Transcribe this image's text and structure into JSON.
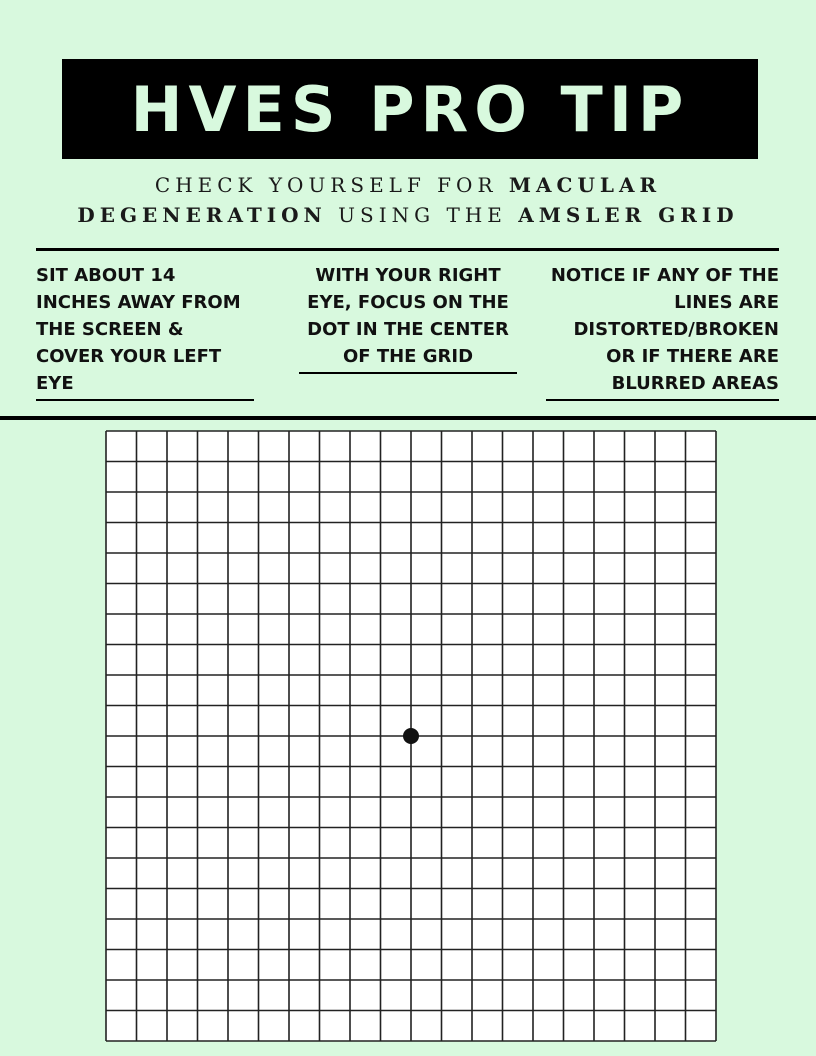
{
  "title": "HVES PRO TIP",
  "subtitle": {
    "line1_regular": "CHECK YOURSELF FOR ",
    "line1_bold": "MACULAR",
    "line2_bold1": "DEGENERATION",
    "line2_regular": " USING THE ",
    "line2_bold2": "AMSLER GRID"
  },
  "steps": [
    {
      "text": "SIT ABOUT 14 INCHES AWAY FROM THE SCREEN & COVER YOUR LEFT EYE"
    },
    {
      "text": "WITH YOUR RIGHT EYE, FOCUS ON THE DOT IN THE CENTER OF THE GRID"
    },
    {
      "text": "NOTICE IF ANY OF THE LINES ARE DISTORTED/BROKEN OR IF THERE ARE BLURRED AREAS"
    }
  ],
  "amsler_grid": {
    "rows": 20,
    "columns": 20,
    "center_dot": true
  },
  "colors": {
    "background": "#d8f9de",
    "banner": "#000000",
    "grid_fill": "#ffffff",
    "grid_lines": "#222222"
  }
}
